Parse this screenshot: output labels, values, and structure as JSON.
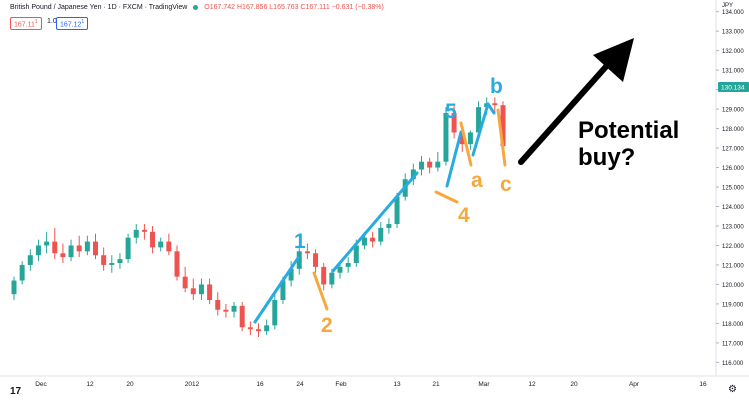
{
  "header": {
    "symbol": "British Pound / Japanese Yen · 1D · FXCM · TradingView",
    "ohlc": "O167.742 H167.856 L165.763 C167.111 −0.631 (−0.38%)",
    "sell_price": "167.11",
    "sell_sup": "1",
    "spread": "1.0",
    "buy_price": "167.12",
    "buy_sup": "1"
  },
  "currency_label": "JPY",
  "last_price_label": "130.134",
  "colors": {
    "up": "#26a69a",
    "down": "#ef5350",
    "wave_blue": "#29abe2",
    "wave_orange": "#f7a83d",
    "arrow": "#000000",
    "last_price_bg": "#26a69a"
  },
  "annotations": {
    "wave_1": "1",
    "wave_2": "2",
    "wave_4": "4",
    "wave_5": "5",
    "wave_a": "a",
    "wave_b": "b",
    "wave_c": "c",
    "callout": [
      "Potential",
      "buy?"
    ]
  },
  "chart_data": {
    "type": "candlestick",
    "title": "",
    "x_tick_labels": [
      "Dec",
      "12",
      "20",
      "2012",
      "16",
      "24",
      "Feb",
      "13",
      "21",
      "Mar",
      "12",
      "20",
      "Apr",
      "16"
    ],
    "y_tick_labels": [
      "116.000",
      "117.000",
      "118.000",
      "119.000",
      "120.000",
      "121.000",
      "122.000",
      "123.000",
      "124.000",
      "125.000",
      "126.000",
      "127.000",
      "128.000",
      "129.000",
      "130.000",
      "131.000",
      "132.000",
      "133.000",
      "134.000"
    ],
    "ylim": [
      115.3,
      134.6
    ],
    "candles": [
      {
        "o": 119.5,
        "h": 120.4,
        "l": 119.2,
        "c": 120.2
      },
      {
        "o": 120.2,
        "h": 121.2,
        "l": 120.0,
        "c": 121.0
      },
      {
        "o": 121.0,
        "h": 121.8,
        "l": 120.7,
        "c": 121.5
      },
      {
        "o": 121.5,
        "h": 122.3,
        "l": 121.2,
        "c": 122.0
      },
      {
        "o": 122.0,
        "h": 122.7,
        "l": 121.6,
        "c": 122.2
      },
      {
        "o": 122.2,
        "h": 122.9,
        "l": 121.3,
        "c": 121.6
      },
      {
        "o": 121.6,
        "h": 122.1,
        "l": 121.1,
        "c": 121.4
      },
      {
        "o": 121.4,
        "h": 122.3,
        "l": 121.2,
        "c": 122.0
      },
      {
        "o": 122.0,
        "h": 122.5,
        "l": 121.4,
        "c": 121.7
      },
      {
        "o": 121.7,
        "h": 122.5,
        "l": 121.5,
        "c": 122.2
      },
      {
        "o": 122.2,
        "h": 122.6,
        "l": 121.3,
        "c": 121.5
      },
      {
        "o": 121.5,
        "h": 121.9,
        "l": 120.7,
        "c": 121.0
      },
      {
        "o": 121.0,
        "h": 121.5,
        "l": 120.6,
        "c": 121.1
      },
      {
        "o": 121.1,
        "h": 121.6,
        "l": 120.8,
        "c": 121.3
      },
      {
        "o": 121.3,
        "h": 122.6,
        "l": 121.1,
        "c": 122.4
      },
      {
        "o": 122.4,
        "h": 123.1,
        "l": 122.1,
        "c": 122.8
      },
      {
        "o": 122.8,
        "h": 123.1,
        "l": 122.3,
        "c": 122.7
      },
      {
        "o": 122.7,
        "h": 123.0,
        "l": 121.6,
        "c": 121.9
      },
      {
        "o": 121.9,
        "h": 122.4,
        "l": 121.7,
        "c": 122.2
      },
      {
        "o": 122.2,
        "h": 122.6,
        "l": 121.5,
        "c": 121.7
      },
      {
        "o": 121.7,
        "h": 122.0,
        "l": 120.2,
        "c": 120.4
      },
      {
        "o": 120.4,
        "h": 120.9,
        "l": 119.6,
        "c": 119.8
      },
      {
        "o": 119.8,
        "h": 120.3,
        "l": 119.2,
        "c": 119.5
      },
      {
        "o": 119.5,
        "h": 120.3,
        "l": 119.2,
        "c": 120.0
      },
      {
        "o": 120.0,
        "h": 120.3,
        "l": 119.0,
        "c": 119.2
      },
      {
        "o": 119.2,
        "h": 119.6,
        "l": 118.4,
        "c": 118.7
      },
      {
        "o": 118.7,
        "h": 119.0,
        "l": 118.3,
        "c": 118.6
      },
      {
        "o": 118.6,
        "h": 119.1,
        "l": 118.3,
        "c": 118.9
      },
      {
        "o": 118.9,
        "h": 119.1,
        "l": 117.6,
        "c": 117.8
      },
      {
        "o": 117.8,
        "h": 118.1,
        "l": 117.4,
        "c": 117.7
      },
      {
        "o": 117.7,
        "h": 118.0,
        "l": 117.3,
        "c": 117.6
      },
      {
        "o": 117.6,
        "h": 118.2,
        "l": 117.4,
        "c": 117.9
      },
      {
        "o": 117.9,
        "h": 119.5,
        "l": 117.7,
        "c": 119.2
      },
      {
        "o": 119.2,
        "h": 120.4,
        "l": 119.0,
        "c": 120.2
      },
      {
        "o": 120.2,
        "h": 121.2,
        "l": 119.9,
        "c": 120.8
      },
      {
        "o": 120.8,
        "h": 122.0,
        "l": 120.5,
        "c": 121.7
      },
      {
        "o": 121.7,
        "h": 122.1,
        "l": 121.3,
        "c": 121.6
      },
      {
        "o": 121.6,
        "h": 121.8,
        "l": 120.6,
        "c": 120.9
      },
      {
        "o": 120.9,
        "h": 121.1,
        "l": 119.7,
        "c": 120.0
      },
      {
        "o": 120.0,
        "h": 120.8,
        "l": 119.8,
        "c": 120.6
      },
      {
        "o": 120.6,
        "h": 121.2,
        "l": 120.3,
        "c": 120.9
      },
      {
        "o": 120.9,
        "h": 121.4,
        "l": 120.6,
        "c": 121.1
      },
      {
        "o": 121.1,
        "h": 122.3,
        "l": 120.9,
        "c": 122.0
      },
      {
        "o": 122.0,
        "h": 122.7,
        "l": 121.8,
        "c": 122.4
      },
      {
        "o": 122.4,
        "h": 122.7,
        "l": 121.9,
        "c": 122.2
      },
      {
        "o": 122.2,
        "h": 123.2,
        "l": 122.0,
        "c": 122.9
      },
      {
        "o": 122.9,
        "h": 123.4,
        "l": 122.6,
        "c": 123.1
      },
      {
        "o": 123.1,
        "h": 124.7,
        "l": 122.9,
        "c": 124.5
      },
      {
        "o": 124.5,
        "h": 125.7,
        "l": 124.3,
        "c": 125.4
      },
      {
        "o": 125.4,
        "h": 126.2,
        "l": 125.1,
        "c": 125.9
      },
      {
        "o": 125.9,
        "h": 126.6,
        "l": 125.6,
        "c": 126.3
      },
      {
        "o": 126.3,
        "h": 126.5,
        "l": 125.7,
        "c": 126.0
      },
      {
        "o": 126.0,
        "h": 126.8,
        "l": 125.8,
        "c": 126.3
      },
      {
        "o": 126.3,
        "h": 129.1,
        "l": 126.1,
        "c": 128.8
      },
      {
        "o": 128.8,
        "h": 129.2,
        "l": 127.5,
        "c": 127.8
      },
      {
        "o": 127.8,
        "h": 128.1,
        "l": 126.8,
        "c": 127.2
      },
      {
        "o": 127.2,
        "h": 127.9,
        "l": 126.9,
        "c": 127.8
      },
      {
        "o": 127.8,
        "h": 129.4,
        "l": 127.6,
        "c": 129.1
      },
      {
        "o": 129.1,
        "h": 129.6,
        "l": 128.7,
        "c": 129.3
      },
      {
        "o": 129.3,
        "h": 129.6,
        "l": 128.8,
        "c": 129.2
      },
      {
        "o": 129.2,
        "h": 129.4,
        "l": 126.8,
        "c": 127.1
      }
    ]
  }
}
